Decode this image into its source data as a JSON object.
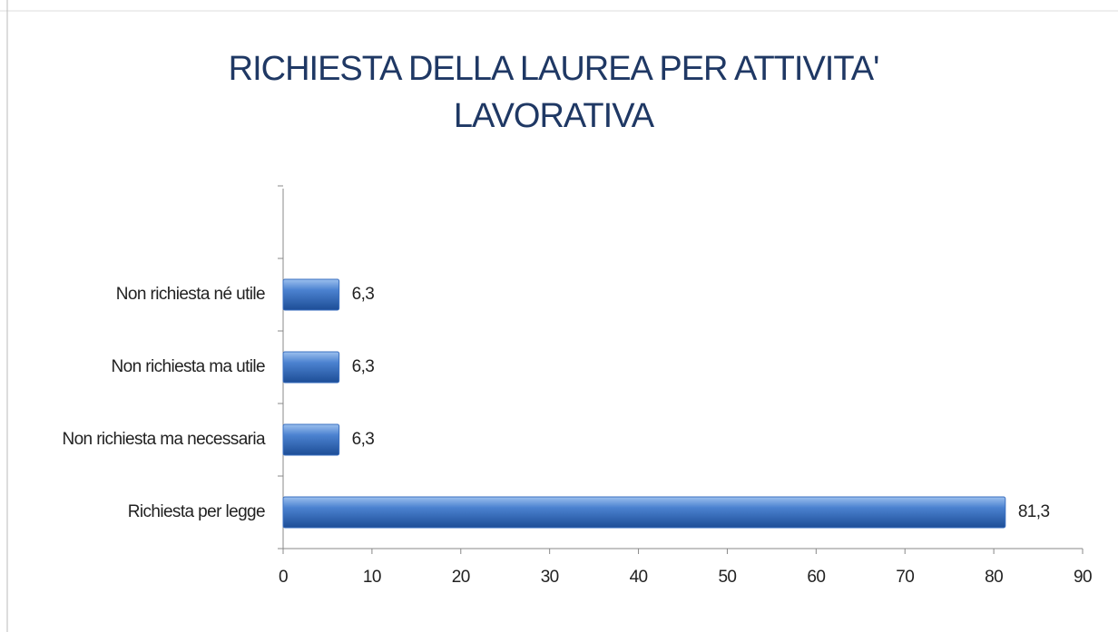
{
  "chart_data": {
    "type": "bar",
    "orientation": "horizontal",
    "title": [
      "RICHIESTA DELLA LAUREA PER ATTIVITA'",
      "LAVORATIVA"
    ],
    "categories": [
      "Richiesta per legge",
      "Non richiesta ma necessaria",
      "Non richiesta ma utile",
      "Non richiesta né utile"
    ],
    "values": [
      81.3,
      6.3,
      6.3,
      6.3
    ],
    "value_labels": [
      "81,3",
      "6,3",
      "6,3",
      "6,3"
    ],
    "color": "#3a6fc0",
    "xlim": [
      0,
      90
    ],
    "xticks": [
      0,
      10,
      20,
      30,
      40,
      50,
      60,
      70,
      80,
      90
    ]
  }
}
